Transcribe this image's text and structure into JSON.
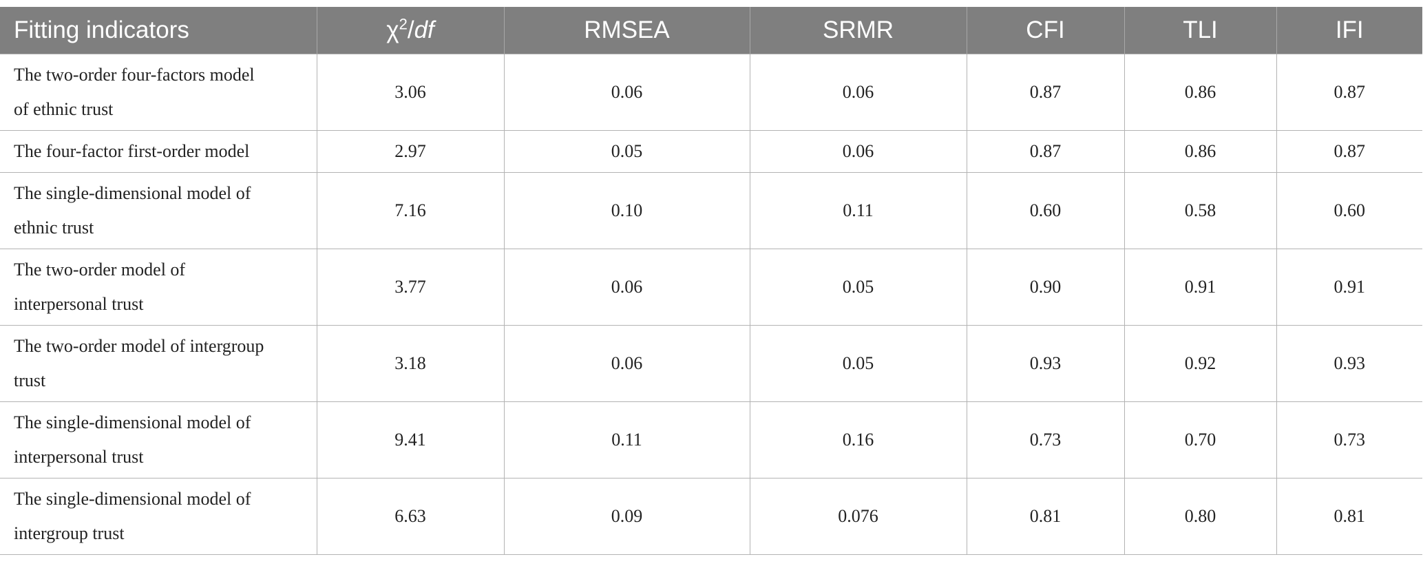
{
  "table": {
    "headers": {
      "indicator": "Fitting indicators",
      "chi_symbol": "χ",
      "chi_sup": "2",
      "chi_slash": "/",
      "chi_df": "df",
      "rmsea": "RMSEA",
      "srmr": "SRMR",
      "cfi": "CFI",
      "tli": "TLI",
      "ifi": "IFI"
    },
    "rows": [
      {
        "line1": "The two-order four-factors model",
        "line2": "of ethnic trust",
        "chi2df": "3.06",
        "rmsea": "0.06",
        "srmr": "0.06",
        "cfi": "0.87",
        "tli": "0.86",
        "ifi": "0.87"
      },
      {
        "line1": "The four-factor first-order model",
        "line2": "",
        "chi2df": "2.97",
        "rmsea": "0.05",
        "srmr": "0.06",
        "cfi": "0.87",
        "tli": "0.86",
        "ifi": "0.87"
      },
      {
        "line1": "The single-dimensional model of",
        "line2": "ethnic trust",
        "chi2df": "7.16",
        "rmsea": "0.10",
        "srmr": "0.11",
        "cfi": "0.60",
        "tli": "0.58",
        "ifi": "0.60"
      },
      {
        "line1": "The two-order model of",
        "line2": "interpersonal trust",
        "chi2df": "3.77",
        "rmsea": "0.06",
        "srmr": "0.05",
        "cfi": "0.90",
        "tli": "0.91",
        "ifi": "0.91"
      },
      {
        "line1": "The two-order model of intergroup",
        "line2": "trust",
        "chi2df": "3.18",
        "rmsea": "0.06",
        "srmr": "0.05",
        "cfi": "0.93",
        "tli": "0.92",
        "ifi": "0.93"
      },
      {
        "line1": "The single-dimensional model of",
        "line2": "interpersonal trust",
        "chi2df": "9.41",
        "rmsea": "0.11",
        "srmr": "0.16",
        "cfi": "0.73",
        "tli": "0.70",
        "ifi": "0.73"
      },
      {
        "line1": "The single-dimensional model of",
        "line2": "intergroup trust",
        "chi2df": "6.63",
        "rmsea": "0.09",
        "srmr": "0.076",
        "cfi": "0.81",
        "tli": "0.80",
        "ifi": "0.81"
      }
    ]
  }
}
